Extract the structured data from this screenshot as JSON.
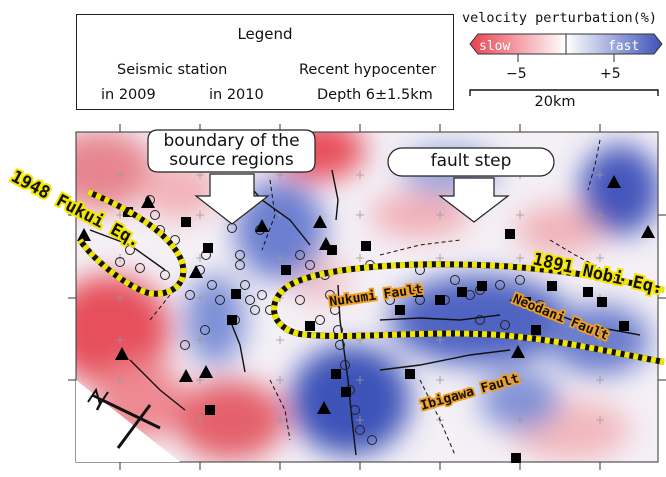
{
  "legend": {
    "title": "Legend",
    "seismic_station": "Seismic station",
    "station_2009": "in 2009",
    "station_2010": "in 2010",
    "recent_hypocenter": "Recent hypocenter",
    "hypocenter_depth": "Depth 6±1.5km"
  },
  "velocity_scale": {
    "title": "velocity perturbation(%)",
    "slow_label": "slow",
    "fast_label": "fast",
    "tick_low": "−5",
    "tick_high": "+5",
    "slow_color": "#e8414f",
    "fast_color": "#3c52b8"
  },
  "scale_bar": {
    "label": "20km"
  },
  "callouts": {
    "boundary_line1": "boundary of the",
    "boundary_line2": "source regions",
    "fault_step": "fault step"
  },
  "map_labels": {
    "fukui_eq": "1948 Fukui Eq.",
    "nobi_eq": "1891 Nobi Eq.",
    "nukumi_fault": "Nukumi Fault",
    "neodani_fault": "Neodani Fault",
    "ibigawa_fault": "Ibigawa Fault"
  },
  "colors": {
    "slow": "#e8414f",
    "fast": "#3c52b8",
    "rupture_outline": "#f2e600",
    "fault_label": "#f0a020"
  },
  "icons": [
    "north-arrow-icon",
    "station-square-icon",
    "station-triangle-icon",
    "hypocenter-circle-icon"
  ]
}
